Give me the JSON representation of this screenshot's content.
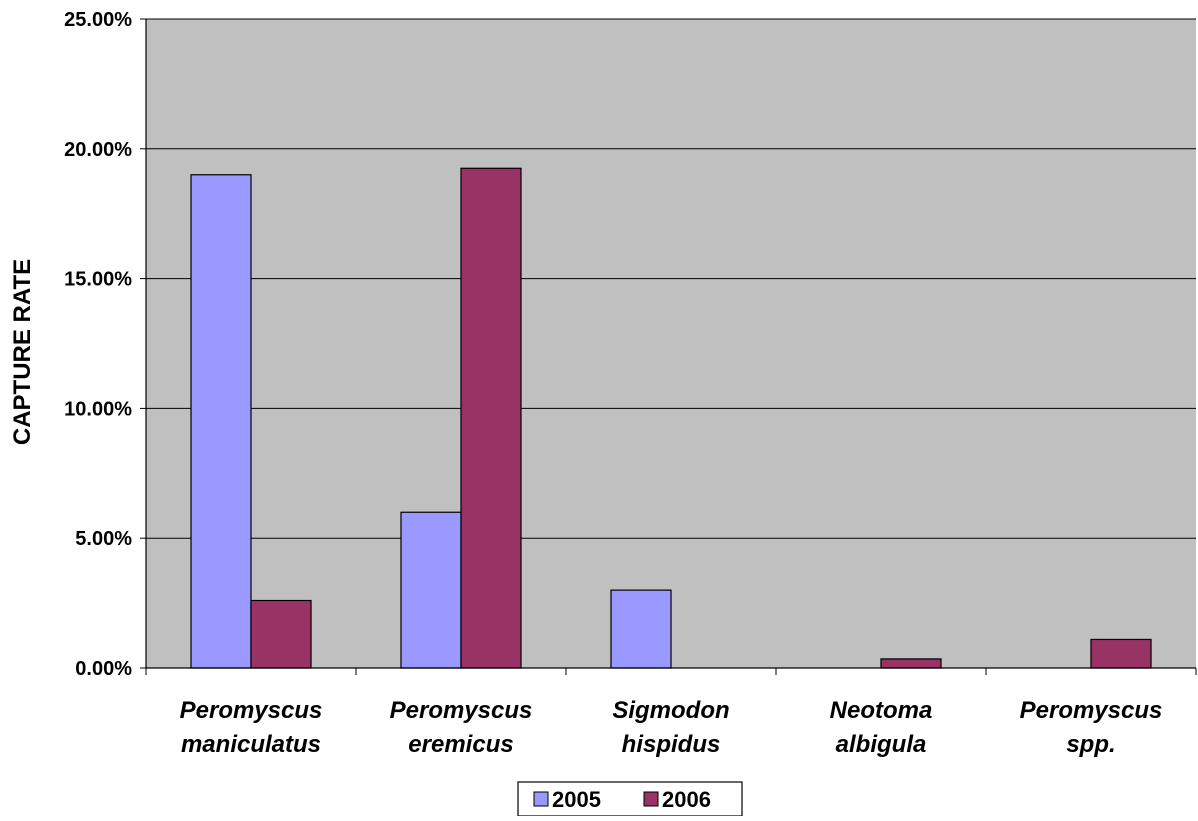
{
  "chart_data": {
    "type": "bar",
    "title": "",
    "xlabel": "",
    "ylabel": "CAPTURE RATE",
    "ylim": [
      0,
      25
    ],
    "y_ticks": [
      "0.00%",
      "5.00%",
      "10.00%",
      "15.00%",
      "20.00%",
      "25.00%"
    ],
    "y_tick_values": [
      0,
      5,
      10,
      15,
      20,
      25
    ],
    "categories": [
      [
        "Peromyscus",
        "maniculatus"
      ],
      [
        "Peromyscus",
        "eremicus"
      ],
      [
        "Sigmodon",
        "hispidus"
      ],
      [
        "Neotoma",
        "albigula"
      ],
      [
        "Peromyscus",
        "spp."
      ]
    ],
    "series": [
      {
        "name": "2005",
        "color": "#9999ff",
        "values": [
          19.0,
          6.0,
          3.0,
          0,
          0
        ]
      },
      {
        "name": "2006",
        "color": "#993366",
        "values": [
          2.6,
          19.25,
          0,
          0.35,
          1.1
        ]
      }
    ],
    "grid": true,
    "plot_background": "#c0c0c0",
    "legend_position": "bottom"
  }
}
